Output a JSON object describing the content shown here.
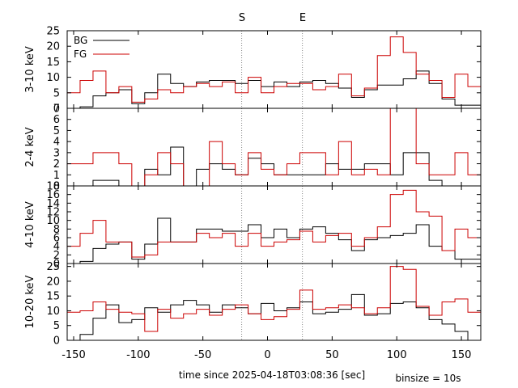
{
  "chart_data": {
    "type": "line",
    "subtype": "step histogram, four stacked panels sharing one x axis",
    "xlabel": "time since 2025-04-18T03:08:36 [sec]",
    "xlim": [
      -155,
      165
    ],
    "xticks": [
      -150,
      -100,
      -50,
      0,
      50,
      100,
      150
    ],
    "bin_size_label": "binsize = 10s",
    "bin_edges": [
      -155,
      -145,
      -135,
      -125,
      -115,
      -105,
      -95,
      -85,
      -75,
      -65,
      -55,
      -45,
      -35,
      -25,
      -15,
      -5,
      5,
      15,
      25,
      35,
      45,
      55,
      65,
      75,
      85,
      95,
      105,
      115,
      125,
      135,
      145,
      155,
      165
    ],
    "markers": [
      {
        "label": "S",
        "x": -20
      },
      {
        "label": "E",
        "x": 27
      }
    ],
    "legend": {
      "placement": "top-left",
      "entries": [
        {
          "name": "BG",
          "color": "#000000"
        },
        {
          "name": "FG",
          "color": "#cc0000"
        }
      ]
    },
    "panels": [
      {
        "ylabel": "3-10 keV",
        "ylim": [
          0,
          25
        ],
        "yticks": [
          0,
          5,
          10,
          15,
          20,
          25
        ],
        "series": [
          {
            "name": "BG",
            "color": "#000000",
            "values": [
              0,
              0.5,
              4,
              5,
              6,
              1.5,
              5,
              11,
              8,
              7,
              8.5,
              9,
              9,
              8,
              9,
              7,
              8.5,
              7,
              8.5,
              9,
              8,
              6.5,
              3.5,
              6,
              7.5,
              7.5,
              9.5,
              12,
              8,
              3,
              1,
              1
            ]
          },
          {
            "name": "FG",
            "color": "#cc0000",
            "values": [
              5,
              9,
              12,
              5,
              7,
              2,
              3,
              6,
              5,
              7,
              8,
              7,
              8.5,
              5,
              10,
              5,
              7,
              8,
              8,
              6,
              7,
              11,
              4,
              6.5,
              17,
              23,
              18,
              11,
              9,
              3.5,
              11,
              7
            ]
          }
        ]
      },
      {
        "ylabel": "2-4 keV",
        "ylim": [
          0,
          7
        ],
        "yticks": [
          0,
          1,
          2,
          3,
          4,
          5,
          6,
          7
        ],
        "series": [
          {
            "name": "BG",
            "color": "#000000",
            "values": [
              0,
              0,
              0.5,
              0.5,
              0,
              0,
              1.5,
              1,
              3.5,
              0,
              1.5,
              2,
              1.5,
              1,
              2.5,
              2,
              1,
              1,
              1,
              1,
              2,
              1.5,
              1.5,
              2,
              2,
              1,
              3,
              3,
              0.5,
              0,
              0,
              0
            ]
          },
          {
            "name": "FG",
            "color": "#cc0000",
            "values": [
              2,
              2,
              3,
              3,
              2,
              0,
              1,
              3,
              2,
              0,
              0,
              4,
              2,
              1,
              3,
              1.5,
              1,
              2,
              3,
              3,
              1,
              4,
              1,
              1.5,
              1,
              7,
              7,
              2,
              1,
              1,
              3,
              1
            ]
          }
        ]
      },
      {
        "ylabel": "4-10 keV",
        "ylim": [
          0,
          18
        ],
        "yticks": [
          0,
          2,
          4,
          6,
          8,
          10,
          12,
          14,
          16,
          18
        ],
        "series": [
          {
            "name": "BG",
            "color": "#000000",
            "values": [
              0,
              0.5,
              3.5,
              4.5,
              5,
              1,
              4.5,
              10.5,
              5,
              5,
              8,
              8,
              7.5,
              7.5,
              9,
              6,
              8,
              6,
              8,
              8.5,
              7,
              5.5,
              3,
              5.5,
              6,
              6.5,
              7,
              9,
              4,
              3,
              1,
              1
            ]
          },
          {
            "name": "FG",
            "color": "#cc0000",
            "values": [
              4,
              7,
              10,
              5,
              5,
              1.5,
              2,
              5,
              5,
              5,
              7,
              6,
              7,
              4,
              7,
              4,
              5,
              5.5,
              7.5,
              5,
              6.5,
              7,
              4,
              6,
              8.5,
              16,
              17,
              12,
              11,
              3,
              8,
              6
            ]
          }
        ]
      },
      {
        "ylabel": "10-20 keV",
        "ylim": [
          0,
          26
        ],
        "yticks": [
          0,
          5,
          10,
          15,
          20,
          25
        ],
        "series": [
          {
            "name": "BG",
            "color": "#000000",
            "values": [
              0,
              2,
              7.5,
              12,
              6,
              7,
              11,
              9.5,
              12,
              13.5,
              12,
              9.5,
              12,
              11,
              9,
              12.5,
              10,
              11,
              13,
              9,
              9.5,
              10.5,
              15.5,
              8.5,
              9,
              12.5,
              13,
              11,
              7,
              5.5,
              3,
              0
            ]
          },
          {
            "name": "FG",
            "color": "#cc0000",
            "values": [
              9.5,
              10,
              13,
              10.5,
              9.5,
              9,
              3,
              10.5,
              7.5,
              9,
              10.5,
              8.5,
              10.5,
              12,
              9,
              7,
              8,
              10.5,
              17,
              10.5,
              11,
              12,
              11,
              9,
              11,
              25,
              24,
              11.5,
              8.5,
              13,
              14,
              9.5
            ]
          }
        ]
      }
    ]
  }
}
